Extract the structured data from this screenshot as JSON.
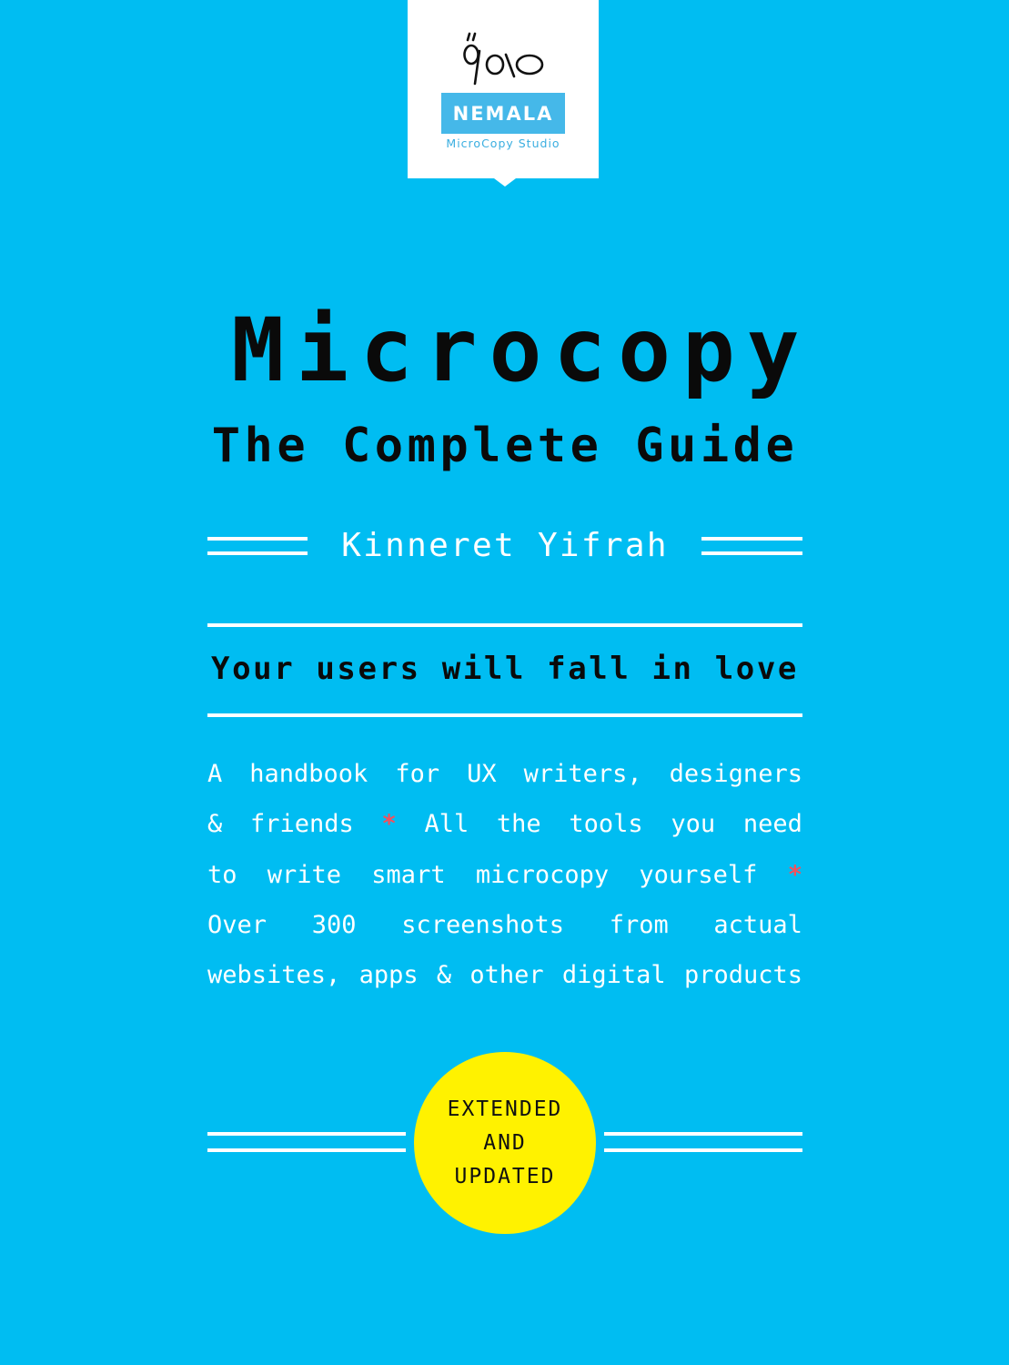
{
  "publisher": {
    "logo_mark": "ő/o\\o",
    "name": "NEMALA",
    "tagline": "MicroCopy Studio"
  },
  "cover": {
    "title": "Microcopy",
    "subtitle": "The Complete Guide",
    "author": "Kinneret Yifrah",
    "tagline": "Your users will fall in love",
    "description_lines": [
      [
        "A",
        "handbook",
        "for",
        "UX",
        "writers,",
        "designers"
      ],
      [
        "&",
        "friends",
        "*",
        "All",
        "the",
        "tools",
        "you",
        "need"
      ],
      [
        "to",
        "write",
        "smart",
        "microcopy",
        "yourself",
        "*"
      ],
      [
        "Over",
        "300",
        "screenshots",
        "from",
        "actual"
      ],
      [
        "websites,",
        "apps",
        "&",
        "other",
        "digital",
        "products"
      ]
    ],
    "badge": [
      "EXTENDED",
      "AND",
      "UPDATED"
    ]
  },
  "colors": {
    "background": "#00bdf2",
    "badge": "#fff200",
    "accent_star": "#f4505c",
    "logo_blue": "#45b8e9"
  }
}
